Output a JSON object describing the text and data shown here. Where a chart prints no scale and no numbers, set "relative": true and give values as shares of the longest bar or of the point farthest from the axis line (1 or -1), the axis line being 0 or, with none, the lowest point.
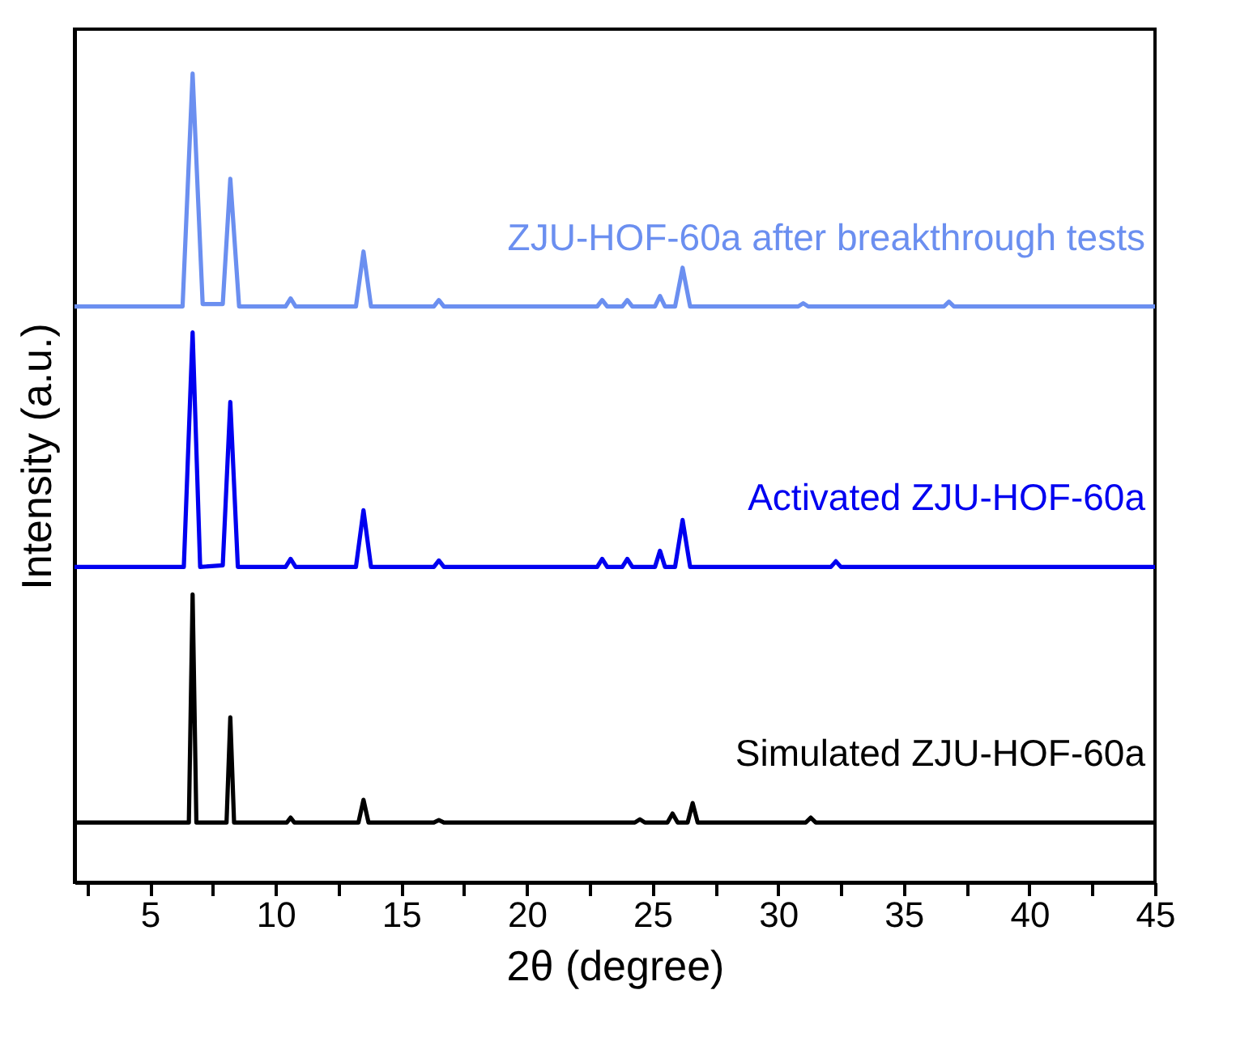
{
  "chart_data": {
    "type": "line",
    "relative": true,
    "xlabel": "2θ (degree)",
    "ylabel": "Intensity (a.u.)",
    "xlim": [
      2,
      45
    ],
    "xticks": [
      {
        "value": 2.5,
        "label": null
      },
      5,
      {
        "value": 7.5,
        "label": null
      },
      10,
      {
        "value": 12.5,
        "label": null
      },
      15,
      {
        "value": 17.5,
        "label": null
      },
      20,
      {
        "value": 22.5,
        "label": null
      },
      25,
      {
        "value": 27.5,
        "label": null
      },
      30,
      {
        "value": 32.5,
        "label": null
      },
      35,
      {
        "value": 37.5,
        "label": null
      },
      40,
      {
        "value": 42.5,
        "label": null
      },
      45
    ],
    "grid": false,
    "marker": "none",
    "line_style": "solid",
    "series": [
      {
        "name": "ZJU-HOF-60a after breakthrough tests",
        "color": "#6b8ff0",
        "x": [
          2,
          6.3,
          6.7,
          7.1,
          7.9,
          8.2,
          8.55,
          10.4,
          10.6,
          10.8,
          13.2,
          13.5,
          13.8,
          16.3,
          16.5,
          16.7,
          22.8,
          23.0,
          23.2,
          23.8,
          24.0,
          24.2,
          25.1,
          25.3,
          25.5,
          25.9,
          26.2,
          26.5,
          30.8,
          31.0,
          31.2,
          36.6,
          36.8,
          37.0,
          45
        ],
        "values": [
          0.712,
          0.712,
          1.0,
          0.715,
          0.715,
          0.87,
          0.712,
          0.712,
          0.722,
          0.712,
          0.712,
          0.78,
          0.712,
          0.712,
          0.72,
          0.712,
          0.712,
          0.72,
          0.712,
          0.712,
          0.72,
          0.712,
          0.712,
          0.725,
          0.712,
          0.712,
          0.76,
          0.712,
          0.712,
          0.716,
          0.712,
          0.712,
          0.718,
          0.712,
          0.712
        ]
      },
      {
        "name": "Activated ZJU-HOF-60a",
        "color": "#0000f0",
        "x": [
          2,
          6.35,
          6.7,
          7.0,
          7.9,
          8.2,
          8.5,
          10.4,
          10.6,
          10.8,
          13.2,
          13.5,
          13.8,
          16.3,
          16.5,
          16.7,
          22.8,
          23.0,
          23.2,
          23.8,
          24.0,
          24.2,
          25.1,
          25.3,
          25.5,
          25.9,
          26.2,
          26.5,
          32.1,
          32.3,
          32.5,
          45
        ],
        "values": [
          0.39,
          0.39,
          0.68,
          0.39,
          0.392,
          0.594,
          0.39,
          0.39,
          0.4,
          0.39,
          0.39,
          0.46,
          0.39,
          0.39,
          0.398,
          0.39,
          0.39,
          0.4,
          0.39,
          0.39,
          0.4,
          0.39,
          0.39,
          0.41,
          0.39,
          0.39,
          0.448,
          0.39,
          0.39,
          0.397,
          0.39,
          0.39
        ]
      },
      {
        "name": "Simulated ZJU-HOF-60a",
        "color": "#000000",
        "x": [
          2,
          6.55,
          6.7,
          6.85,
          8.05,
          8.2,
          8.35,
          10.45,
          10.6,
          10.75,
          13.3,
          13.5,
          13.7,
          16.3,
          16.5,
          16.7,
          24.3,
          24.5,
          24.7,
          25.6,
          25.8,
          26.0,
          26.4,
          26.6,
          26.8,
          31.1,
          31.3,
          31.5,
          45
        ],
        "values": [
          0.074,
          0.074,
          0.356,
          0.074,
          0.074,
          0.204,
          0.074,
          0.074,
          0.08,
          0.074,
          0.074,
          0.102,
          0.074,
          0.074,
          0.077,
          0.074,
          0.074,
          0.078,
          0.074,
          0.074,
          0.085,
          0.074,
          0.074,
          0.098,
          0.074,
          0.074,
          0.08,
          0.074,
          0.074
        ]
      }
    ]
  }
}
